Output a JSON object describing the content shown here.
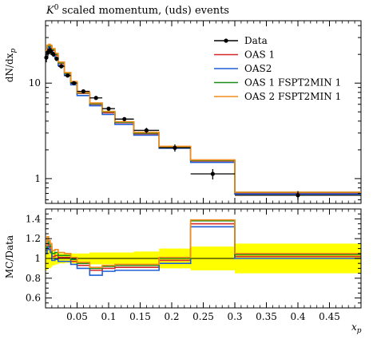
{
  "chart_data": [
    {
      "type": "line",
      "panel": "main",
      "title": "K⁰ scaled momentum, (uds) events",
      "title_var": "K",
      "title_sup": "0",
      "title_rest": " scaled momentum, (uds) events",
      "ylabel": "dN/dx",
      "ylabel_sub": "p",
      "yscale": "log",
      "ylim": [
        0.55,
        45
      ],
      "xlim": [
        0.0,
        0.5
      ],
      "y_ticks": [
        {
          "value": 1,
          "label": "1"
        },
        {
          "value": 10,
          "label": "10"
        }
      ],
      "legend_position": "top-right",
      "data": {
        "name": "Data",
        "points": [
          {
            "x": 0.00125,
            "y": 18.5,
            "xlo": 0.0,
            "xhi": 0.0025,
            "err": 2.0
          },
          {
            "x": 0.00375,
            "y": 21.0,
            "xlo": 0.0025,
            "xhi": 0.005,
            "err": 2.0
          },
          {
            "x": 0.00625,
            "y": 22.0,
            "xlo": 0.005,
            "xhi": 0.0075,
            "err": 2.0
          },
          {
            "x": 0.00875,
            "y": 21.5,
            "xlo": 0.0075,
            "xhi": 0.01,
            "err": 1.8
          },
          {
            "x": 0.0125,
            "y": 20.0,
            "xlo": 0.01,
            "xhi": 0.015,
            "err": 1.2
          },
          {
            "x": 0.0175,
            "y": 18.0,
            "xlo": 0.015,
            "xhi": 0.02,
            "err": 1.0
          },
          {
            "x": 0.025,
            "y": 15.0,
            "xlo": 0.02,
            "xhi": 0.03,
            "err": 0.7
          },
          {
            "x": 0.035,
            "y": 12.0,
            "xlo": 0.03,
            "xhi": 0.04,
            "err": 0.5
          },
          {
            "x": 0.045,
            "y": 10.0,
            "xlo": 0.04,
            "xhi": 0.05,
            "err": 0.4
          },
          {
            "x": 0.06,
            "y": 8.2,
            "xlo": 0.05,
            "xhi": 0.07,
            "err": 0.3
          },
          {
            "x": 0.08,
            "y": 7.0,
            "xlo": 0.07,
            "xhi": 0.09,
            "err": 0.3
          },
          {
            "x": 0.1,
            "y": 5.4,
            "xlo": 0.09,
            "xhi": 0.11,
            "err": 0.25
          },
          {
            "x": 0.125,
            "y": 4.2,
            "xlo": 0.11,
            "xhi": 0.14,
            "err": 0.2
          },
          {
            "x": 0.16,
            "y": 3.2,
            "xlo": 0.14,
            "xhi": 0.18,
            "err": 0.2
          },
          {
            "x": 0.205,
            "y": 2.1,
            "xlo": 0.18,
            "xhi": 0.23,
            "err": 0.18
          },
          {
            "x": 0.265,
            "y": 1.12,
            "xlo": 0.23,
            "xhi": 0.3,
            "err": 0.14
          },
          {
            "x": 0.4,
            "y": 0.67,
            "xlo": 0.3,
            "xhi": 0.5,
            "err": 0.07
          }
        ]
      },
      "bin_edges": [
        0.0,
        0.0025,
        0.005,
        0.0075,
        0.01,
        0.015,
        0.02,
        0.03,
        0.04,
        0.05,
        0.07,
        0.09,
        0.11,
        0.14,
        0.18,
        0.23,
        0.3,
        0.5
      ],
      "series": [
        {
          "name": "OAS 1",
          "color": "#d62728",
          "values": [
            21.0,
            24.0,
            24.5,
            24.0,
            22.0,
            19.5,
            16.0,
            12.5,
            10.0,
            7.8,
            6.0,
            4.9,
            3.85,
            2.95,
            2.13,
            1.53,
            0.71
          ]
        },
        {
          "name": "OAS2",
          "color": "#1f5fd6",
          "values": [
            20.5,
            23.5,
            24.0,
            23.0,
            21.0,
            18.5,
            15.3,
            12.0,
            9.6,
            7.4,
            5.8,
            4.7,
            3.7,
            2.85,
            2.08,
            1.48,
            0.69
          ]
        },
        {
          "name": "OAS 1 FSPT2MIN 1",
          "color": "#1a8c1a",
          "values": [
            21.5,
            24.5,
            25.0,
            24.5,
            22.5,
            20.0,
            16.3,
            12.7,
            10.2,
            7.9,
            6.1,
            5.0,
            3.9,
            3.0,
            2.16,
            1.55,
            0.72
          ]
        },
        {
          "name": "OAS 2 FSPT2MIN 1",
          "color": "#f28c1a",
          "values": [
            22.0,
            25.0,
            25.5,
            25.0,
            23.0,
            20.5,
            16.6,
            12.9,
            10.4,
            8.0,
            6.2,
            5.05,
            3.95,
            3.05,
            2.18,
            1.57,
            0.72
          ]
        }
      ]
    },
    {
      "type": "line",
      "panel": "ratio",
      "ylabel": "MC/Data",
      "xlabel": "x",
      "xlabel_sub": "p",
      "xlim": [
        0.0,
        0.5
      ],
      "ylim": [
        0.5,
        1.5
      ],
      "y_ticks": [
        {
          "value": 0.6,
          "label": "0.6"
        },
        {
          "value": 0.8,
          "label": "0.8"
        },
        {
          "value": 1.0,
          "label": "1"
        },
        {
          "value": 1.2,
          "label": "1.2"
        },
        {
          "value": 1.4,
          "label": "1.4"
        }
      ],
      "x_ticks": [
        {
          "value": 0.05,
          "label": "0.05"
        },
        {
          "value": 0.1,
          "label": "0.1"
        },
        {
          "value": 0.15,
          "label": "0.15"
        },
        {
          "value": 0.2,
          "label": "0.2"
        },
        {
          "value": 0.25,
          "label": "0.25"
        },
        {
          "value": 0.3,
          "label": "0.3"
        },
        {
          "value": 0.35,
          "label": "0.35"
        },
        {
          "value": 0.4,
          "label": "0.4"
        },
        {
          "value": 0.45,
          "label": "0.45"
        }
      ],
      "band_color": "#ffff00",
      "uncertainty_band": [
        {
          "xlo": 0.0,
          "xhi": 0.0025,
          "lo": 0.88,
          "hi": 1.12
        },
        {
          "xlo": 0.0025,
          "xhi": 0.005,
          "lo": 0.9,
          "hi": 1.1
        },
        {
          "xlo": 0.005,
          "xhi": 0.0075,
          "lo": 0.9,
          "hi": 1.1
        },
        {
          "xlo": 0.0075,
          "xhi": 0.01,
          "lo": 0.91,
          "hi": 1.09
        },
        {
          "xlo": 0.01,
          "xhi": 0.015,
          "lo": 0.93,
          "hi": 1.07
        },
        {
          "xlo": 0.015,
          "xhi": 0.02,
          "lo": 0.94,
          "hi": 1.06
        },
        {
          "xlo": 0.02,
          "xhi": 0.03,
          "lo": 0.95,
          "hi": 1.05
        },
        {
          "xlo": 0.03,
          "xhi": 0.04,
          "lo": 0.955,
          "hi": 1.045
        },
        {
          "xlo": 0.04,
          "xhi": 0.05,
          "lo": 0.95,
          "hi": 1.05
        },
        {
          "xlo": 0.05,
          "xhi": 0.07,
          "lo": 0.95,
          "hi": 1.05
        },
        {
          "xlo": 0.07,
          "xhi": 0.09,
          "lo": 0.94,
          "hi": 1.06
        },
        {
          "xlo": 0.09,
          "xhi": 0.11,
          "lo": 0.94,
          "hi": 1.06
        },
        {
          "xlo": 0.11,
          "xhi": 0.14,
          "lo": 0.94,
          "hi": 1.06
        },
        {
          "xlo": 0.14,
          "xhi": 0.18,
          "lo": 0.93,
          "hi": 1.07
        },
        {
          "xlo": 0.18,
          "xhi": 0.23,
          "lo": 0.9,
          "hi": 1.1
        },
        {
          "xlo": 0.23,
          "xhi": 0.3,
          "lo": 0.88,
          "hi": 1.12
        },
        {
          "xlo": 0.3,
          "xhi": 0.5,
          "lo": 0.85,
          "hi": 1.15
        }
      ],
      "series": [
        {
          "name": "OAS 1",
          "color": "#d62728",
          "values": [
            1.08,
            1.15,
            1.12,
            1.09,
            1.02,
            1.03,
            1.01,
            1.01,
            0.97,
            0.93,
            0.88,
            0.9,
            0.91,
            0.91,
            0.98,
            1.35,
            1.02
          ]
        },
        {
          "name": "OAS2",
          "color": "#1f5fd6",
          "values": [
            1.05,
            1.12,
            1.09,
            1.06,
            0.98,
            0.99,
            0.97,
            0.97,
            0.94,
            0.9,
            0.83,
            0.87,
            0.88,
            0.88,
            0.95,
            1.32,
            1.0
          ]
        },
        {
          "name": "OAS 1 FSPT2MIN 1",
          "color": "#1a8c1a",
          "values": [
            1.1,
            1.18,
            1.15,
            1.12,
            1.05,
            1.06,
            1.03,
            1.03,
            0.99,
            0.95,
            0.9,
            0.92,
            0.93,
            0.93,
            1.0,
            1.38,
            1.04
          ]
        },
        {
          "name": "OAS 2 FSPT2MIN 1",
          "color": "#f28c1a",
          "values": [
            1.13,
            1.22,
            1.18,
            1.15,
            1.08,
            1.09,
            1.06,
            1.05,
            1.01,
            0.96,
            0.91,
            0.93,
            0.94,
            0.94,
            1.01,
            1.39,
            1.05
          ]
        }
      ]
    }
  ]
}
